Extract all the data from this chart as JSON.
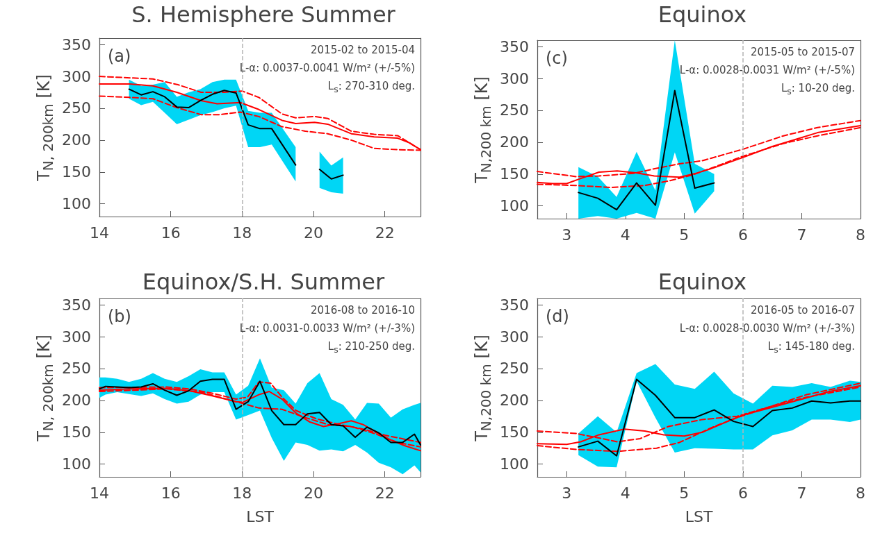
{
  "chart_data": [
    {
      "type": "line",
      "title": "S. Hemisphere Summer",
      "ylabel": "T$_{N, 200km}$ [K]",
      "xlim": [
        14,
        23
      ],
      "xticks": [
        14,
        16,
        18,
        20,
        22
      ],
      "ylim": [
        80,
        360
      ],
      "yticks": [
        100,
        150,
        200,
        250,
        300,
        350
      ],
      "annotations": [
        "(a)",
        "2015-02 to 2015-04",
        "L-α: 0.0037-0.0041 W/m² (+/-5%)",
        "L$_{s}$: 270-310 deg."
      ],
      "ref_lines": [
        {
          "axis": "x",
          "value": 18,
          "color": "#b4b4b4",
          "line_style": "dashed"
        }
      ],
      "series": [
        {
          "color": "#ff0000",
          "x": [
            14,
            14.85,
            15.5,
            16.17,
            16.85,
            17.3,
            17.95,
            18.47,
            19.12,
            19.5,
            20.03,
            20.4,
            21.06,
            21.7,
            22.36,
            22.68,
            23
          ],
          "values": [
            288,
            288,
            285,
            275,
            262,
            257,
            259,
            248,
            231,
            226,
            228,
            225,
            210,
            205,
            203,
            196,
            185
          ]
        },
        {
          "color": "#ff0000",
          "line_style": "dashed",
          "x": [
            14,
            15.5,
            16.2,
            16.85,
            17.5,
            18,
            18.47,
            19.12,
            19.5,
            20.03,
            20.4,
            21.06,
            21.7,
            22.36,
            23
          ],
          "values": [
            300,
            296,
            287,
            275,
            275,
            277,
            267,
            241,
            235,
            237,
            234,
            214,
            209,
            207,
            185
          ]
        },
        {
          "color": "#ff0000",
          "line_style": "dashed",
          "x": [
            14,
            14.85,
            15.5,
            16.17,
            16.85,
            17.36,
            17.95,
            18.47,
            19.12,
            19.77,
            20.4,
            21.06,
            21.7,
            22.36,
            23
          ],
          "values": [
            269,
            267,
            265,
            251,
            240,
            240,
            244,
            237,
            221,
            214,
            210,
            200,
            187,
            185,
            184
          ]
        },
        {
          "color": "#000000",
          "x": [
            14.83,
            15.17,
            15.5,
            15.83,
            16.17,
            16.5,
            16.83,
            17.17,
            17.5,
            17.83,
            18.17,
            18.5,
            18.83,
            19.5,
            19.83,
            20.17,
            20.5,
            20.83
          ],
          "values": [
            280,
            271,
            276,
            268,
            252,
            251,
            262,
            272,
            278,
            274,
            224,
            218,
            218,
            161,
            null,
            154,
            139,
            145
          ],
          "lower": [
            265,
            255,
            260,
            243,
            225,
            232,
            239,
            244,
            250,
            254,
            189,
            189,
            193,
            135,
            null,
            125,
            118,
            116
          ],
          "upper": [
            295,
            285,
            287,
            291,
            268,
            275,
            280,
            291,
            295,
            295,
            246,
            243,
            243,
            189,
            null,
            182,
            160,
            173
          ]
        }
      ]
    },
    {
      "type": "line",
      "title": "Equinox",
      "ylabel": "T$_{N,200 km}$ [K]",
      "xlim": [
        2.5,
        8
      ],
      "xticks": [
        3,
        4,
        5,
        6,
        7,
        8
      ],
      "ylim": [
        80,
        360
      ],
      "yticks": [
        100,
        150,
        200,
        250,
        300,
        350
      ],
      "annotations": [
        "(c)",
        "2015-05 to 2015-07",
        "L-α: 0.0028-0.0031 W/m² (+/-5%)",
        "L$_{s}$: 10-20 deg."
      ],
      "ref_lines": [
        {
          "axis": "x",
          "value": 6,
          "color": "#b4b4b4",
          "line_style": "dashed"
        }
      ],
      "series": [
        {
          "color": "#ff0000",
          "x": [
            2.5,
            2.76,
            3.0,
            3.24,
            3.55,
            3.86,
            4.18,
            4.49,
            4.92,
            5.2,
            5.51,
            6.0,
            6.49,
            6.88,
            7.27,
            7.67,
            8.0
          ],
          "values": [
            137,
            135,
            135,
            143,
            153,
            155,
            152,
            147,
            145,
            151,
            160,
            176,
            193,
            204,
            215,
            221,
            226
          ]
        },
        {
          "color": "#ff0000",
          "line_style": "dashed",
          "x": [
            2.5,
            3.16,
            3.55,
            4.14,
            4.53,
            4.92,
            5.31,
            6.0,
            6.69,
            7.27,
            8.0
          ],
          "values": [
            154,
            146,
            147,
            151,
            159,
            166,
            171,
            189,
            210,
            223,
            234
          ]
        },
        {
          "color": "#ff0000",
          "line_style": "dashed",
          "x": [
            2.5,
            3.16,
            3.75,
            4.33,
            4.73,
            5.12,
            5.51,
            6.0,
            6.69,
            7.27,
            8.0
          ],
          "values": [
            134,
            132,
            129,
            132,
            139,
            148,
            161,
            178,
            198,
            210,
            223
          ]
        },
        {
          "color": "#000000",
          "x": [
            3.2,
            3.53,
            3.85,
            4.19,
            4.51,
            4.84,
            5.18,
            5.51
          ],
          "values": [
            121,
            112,
            94,
            136,
            101,
            281,
            128,
            136
          ],
          "lower": [
            80,
            84,
            80,
            89,
            80,
            184,
            88,
            123
          ],
          "upper": [
            161,
            146,
            114,
            185,
            124,
            360,
            166,
            150
          ]
        }
      ]
    },
    {
      "type": "line",
      "title": "Equinox/S.H. Summer",
      "xlabel": "LST",
      "ylabel": "T$_{N, 200km}$ [K]",
      "xlim": [
        14,
        23
      ],
      "xticks": [
        14,
        16,
        18,
        20,
        22
      ],
      "ylim": [
        80,
        360
      ],
      "yticks": [
        100,
        150,
        200,
        250,
        300,
        350
      ],
      "annotations": [
        "(b)",
        "2016-08 to 2016-10",
        "L-α: 0.0031-0.0033 W/m² (+/-3%)",
        "L$_{s}$: 210-250 deg."
      ],
      "ref_lines": [
        {
          "axis": "x",
          "value": 18,
          "color": "#b4b4b4",
          "line_style": "dashed"
        }
      ],
      "series": [
        {
          "color": "#ff0000",
          "x": [
            14.0,
            14.85,
            15.88,
            16.53,
            17.18,
            17.83,
            18.02,
            18.47,
            18.76,
            19.12,
            19.51,
            19.9,
            20.28,
            20.74,
            21.06,
            21.39,
            21.71,
            22.16,
            22.55,
            23.0
          ],
          "values": [
            216,
            218,
            219,
            215,
            207,
            198,
            197,
            209,
            214,
            202,
            180,
            166,
            159,
            164,
            168,
            162,
            152,
            138,
            129,
            121
          ]
        },
        {
          "color": "#ff0000",
          "line_style": "dashed",
          "x": [
            14.0,
            15.88,
            16.53,
            17.18,
            17.83,
            18.15,
            18.47,
            18.8,
            19.12,
            19.51,
            20.09,
            20.74,
            21.39,
            22.03,
            23.0
          ],
          "values": [
            220,
            221,
            218,
            211,
            202,
            205,
            229,
            227,
            205,
            184,
            171,
            162,
            155,
            145,
            134
          ]
        },
        {
          "color": "#ff0000",
          "line_style": "dashed",
          "x": [
            14.0,
            15.88,
            16.85,
            17.83,
            18.47,
            19.12,
            19.77,
            20.41,
            21.06,
            21.71,
            22.36,
            23.0
          ],
          "values": [
            214,
            218,
            213,
            198,
            188,
            186,
            173,
            162,
            159,
            148,
            134,
            127
          ]
        },
        {
          "color": "#000000",
          "x": [
            14.0,
            14.17,
            14.5,
            14.83,
            15.17,
            15.5,
            15.83,
            16.17,
            16.5,
            16.83,
            17.17,
            17.5,
            17.83,
            18.17,
            18.5,
            18.83,
            19.17,
            19.5,
            19.83,
            20.17,
            20.5,
            20.83,
            21.17,
            21.5,
            21.83,
            22.17,
            22.5,
            22.83,
            23.0
          ],
          "values": [
            218,
            222,
            221,
            220,
            221,
            226,
            216,
            208,
            215,
            230,
            233,
            233,
            186,
            198,
            230,
            184,
            162,
            162,
            179,
            181,
            162,
            160,
            142,
            158,
            149,
            134,
            134,
            147,
            130
          ],
          "lower": [
            204,
            209,
            213,
            210,
            207,
            211,
            202,
            195,
            198,
            209,
            213,
            213,
            170,
            177,
            184,
            141,
            105,
            134,
            130,
            121,
            123,
            120,
            130,
            118,
            102,
            95,
            84,
            98,
            87
          ],
          "upper": [
            236,
            236,
            234,
            229,
            234,
            243,
            234,
            229,
            238,
            249,
            244,
            244,
            209,
            223,
            266,
            220,
            216,
            195,
            227,
            243,
            202,
            193,
            170,
            196,
            195,
            173,
            186,
            193,
            196
          ]
        }
      ]
    },
    {
      "type": "line",
      "title": "Equinox",
      "xlabel": "LST",
      "ylabel": "T$_{N,200 km}$ [K]",
      "xlim": [
        2.5,
        8
      ],
      "xticks": [
        3,
        4,
        5,
        6,
        7,
        8
      ],
      "ylim": [
        80,
        360
      ],
      "yticks": [
        100,
        150,
        200,
        250,
        300,
        350
      ],
      "annotations": [
        "(d)",
        "2016-05 to 2016-07",
        "L-α: 0.0028-0.0030 W/m² (+/-3%)",
        "L$_{s}$: 145-180 deg."
      ],
      "ref_lines": [
        {
          "axis": "x",
          "value": 6,
          "color": "#b4b4b4",
          "line_style": "dashed"
        }
      ],
      "series": [
        {
          "color": "#ff0000",
          "x": [
            2.5,
            3.0,
            3.24,
            3.55,
            3.98,
            4.33,
            4.65,
            5.0,
            5.31,
            5.71,
            6.0,
            6.49,
            7.08,
            7.47,
            8.0
          ],
          "values": [
            132,
            131,
            135,
            146,
            155,
            152,
            146,
            144,
            150,
            166,
            177,
            189,
            204,
            214,
            223
          ]
        },
        {
          "color": "#ff0000",
          "line_style": "dashed",
          "x": [
            2.5,
            3.16,
            3.55,
            3.86,
            4.25,
            4.73,
            5.31,
            5.9,
            6.49,
            7.08,
            8.0
          ],
          "values": [
            152,
            148,
            141,
            135,
            140,
            159,
            170,
            175,
            191,
            209,
            227
          ]
        },
        {
          "color": "#ff0000",
          "line_style": "dashed",
          "x": [
            2.5,
            3.16,
            3.86,
            4.53,
            4.92,
            5.51,
            5.9,
            6.49,
            7.08,
            8.0
          ],
          "values": [
            129,
            123,
            120,
            125,
            134,
            159,
            173,
            191,
            205,
            221
          ]
        },
        {
          "color": "#000000",
          "x": [
            3.2,
            3.53,
            3.85,
            4.19,
            4.51,
            4.84,
            5.18,
            5.51,
            5.84,
            6.17,
            6.5,
            6.84,
            7.17,
            7.49,
            7.82,
            8.0
          ],
          "values": [
            127,
            136,
            113,
            233,
            208,
            173,
            173,
            185,
            167,
            159,
            184,
            188,
            199,
            196,
            199,
            199
          ],
          "lower": [
            114,
            96,
            95,
            230,
            173,
            118,
            125,
            124,
            123,
            123,
            145,
            153,
            170,
            170,
            166,
            170
          ],
          "upper": [
            148,
            175,
            150,
            243,
            257,
            225,
            218,
            245,
            211,
            195,
            223,
            221,
            227,
            221,
            231,
            229
          ]
        }
      ]
    }
  ]
}
